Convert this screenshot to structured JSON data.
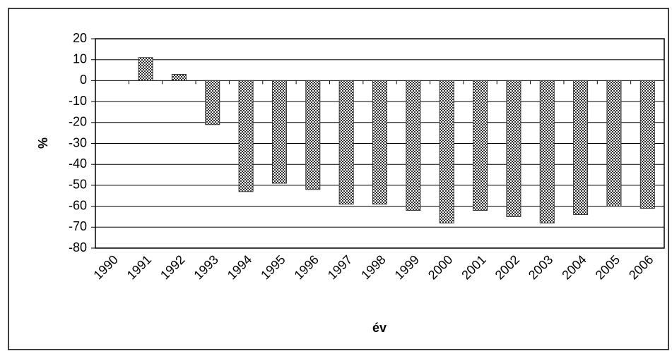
{
  "chart_data": {
    "type": "bar",
    "x_label": "év",
    "y_label": "%",
    "categories": [
      "1990",
      "1991",
      "1992",
      "1993",
      "1994",
      "1995",
      "1996",
      "1997",
      "1998",
      "1999",
      "2000",
      "2001",
      "2002",
      "2003",
      "2004",
      "2005",
      "2006"
    ],
    "values": [
      null,
      11,
      3,
      -21,
      -53,
      -49,
      -52,
      -59,
      -59,
      -62,
      -68,
      -62,
      -65,
      -68,
      -64,
      -60,
      -61
    ],
    "color": "#333333",
    "ylim": [
      -80,
      20
    ],
    "yticks": [
      -80,
      -70,
      -60,
      -50,
      -40,
      -30,
      -20,
      -10,
      0,
      10,
      20
    ],
    "grid": true
  }
}
